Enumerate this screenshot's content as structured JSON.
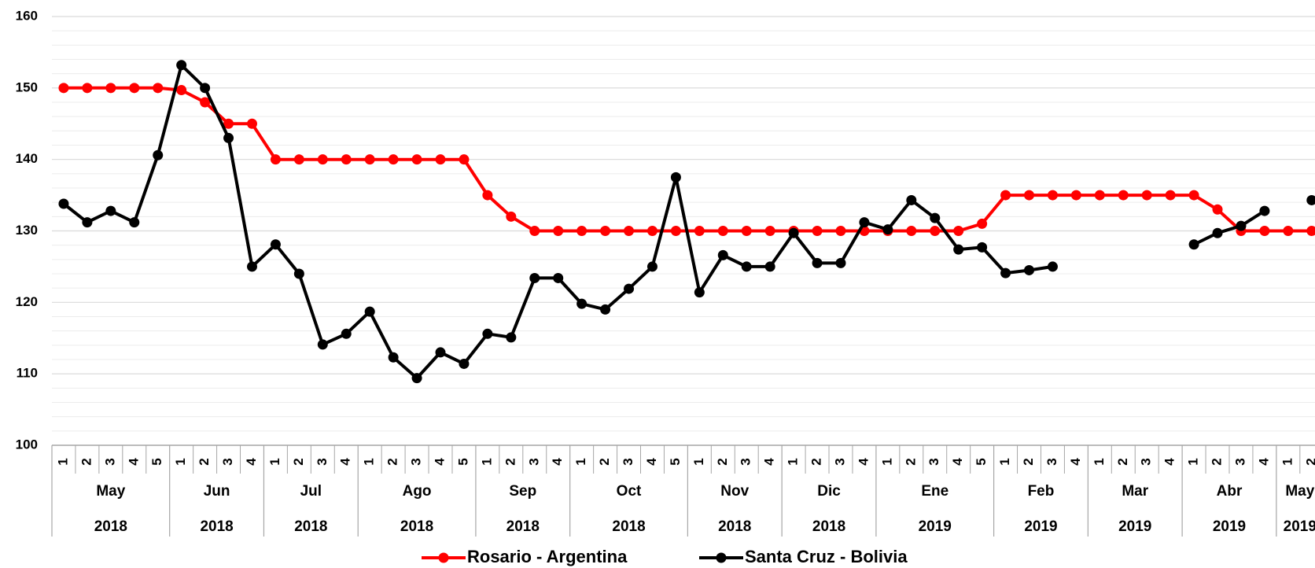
{
  "chart_data": {
    "type": "line",
    "groups": [
      {
        "month": "May",
        "year": "2018",
        "weeks": [
          "1",
          "2",
          "3",
          "4",
          "5"
        ]
      },
      {
        "month": "Jun",
        "year": "2018",
        "weeks": [
          "1",
          "2",
          "3",
          "4"
        ]
      },
      {
        "month": "Jul",
        "year": "2018",
        "weeks": [
          "1",
          "2",
          "3",
          "4"
        ]
      },
      {
        "month": "Ago",
        "year": "2018",
        "weeks": [
          "1",
          "2",
          "3",
          "4",
          "5"
        ]
      },
      {
        "month": "Sep",
        "year": "2018",
        "weeks": [
          "1",
          "2",
          "3",
          "4"
        ]
      },
      {
        "month": "Oct",
        "year": "2018",
        "weeks": [
          "1",
          "2",
          "3",
          "4",
          "5"
        ]
      },
      {
        "month": "Nov",
        "year": "2018",
        "weeks": [
          "1",
          "2",
          "3",
          "4"
        ]
      },
      {
        "month": "Dic",
        "year": "2018",
        "weeks": [
          "1",
          "2",
          "3",
          "4"
        ]
      },
      {
        "month": "Ene",
        "year": "2019",
        "weeks": [
          "1",
          "2",
          "3",
          "4",
          "5"
        ]
      },
      {
        "month": "Feb",
        "year": "2019",
        "weeks": [
          "1",
          "2",
          "3",
          "4"
        ]
      },
      {
        "month": "Mar",
        "year": "2019",
        "weeks": [
          "1",
          "2",
          "3",
          "4"
        ]
      },
      {
        "month": "Abr",
        "year": "2019",
        "weeks": [
          "1",
          "2",
          "3",
          "4"
        ]
      },
      {
        "month": "May",
        "year": "2019",
        "weeks": [
          "1",
          "2"
        ]
      }
    ],
    "series": [
      {
        "name": "Rosario - Argentina",
        "color": "#ff0000",
        "values": [
          150,
          150,
          150,
          150,
          150,
          149.7,
          148,
          145,
          145,
          140,
          140,
          140,
          140,
          140,
          140,
          140,
          140,
          140,
          135,
          132,
          130,
          130,
          130,
          130,
          130,
          130,
          130,
          130,
          130,
          130,
          130,
          130,
          130,
          130,
          130,
          130,
          130,
          130,
          130,
          131,
          135,
          135,
          135,
          135,
          135,
          135,
          135,
          135,
          135,
          133,
          130,
          130,
          130,
          130
        ]
      },
      {
        "name": "Santa Cruz - Bolivia",
        "color": "#000000",
        "values": [
          133.8,
          131.2,
          132.8,
          131.2,
          140.6,
          153.2,
          150,
          143,
          125,
          128.1,
          124,
          114.1,
          115.6,
          118.7,
          112.3,
          109.4,
          113,
          111.4,
          115.6,
          115.1,
          123.4,
          123.4,
          119.8,
          119,
          121.9,
          125,
          137.5,
          121.4,
          126.6,
          125,
          125,
          129.7,
          125.5,
          125.5,
          131.2,
          130.2,
          134.3,
          131.8,
          127.4,
          127.7,
          124.1,
          124.5,
          125,
          null,
          null,
          null,
          null,
          null,
          128.1,
          129.7,
          130.7,
          132.8,
          null,
          134.3
        ]
      }
    ],
    "ylim": [
      100,
      160
    ],
    "yticks": [
      100,
      110,
      120,
      130,
      140,
      150,
      160
    ],
    "minor_yticks": [
      102,
      104,
      106,
      108,
      112,
      114,
      116,
      118,
      122,
      124,
      126,
      128,
      132,
      134,
      136,
      138,
      142,
      144,
      146,
      148,
      152,
      154,
      156,
      158
    ],
    "grid": true,
    "legend": "bottom"
  }
}
